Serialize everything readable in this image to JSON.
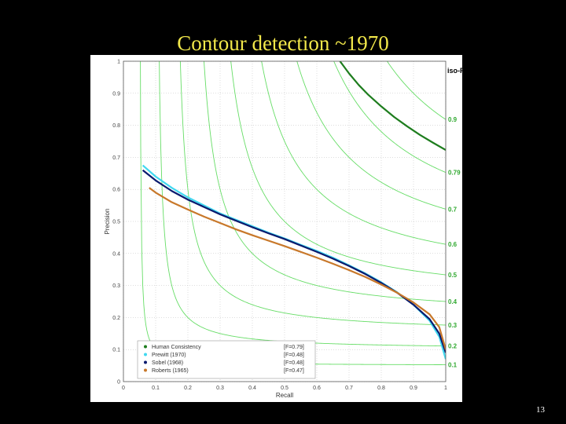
{
  "slide": {
    "title": "Contour detection ~1970",
    "page_number": "13"
  },
  "chart_data": {
    "type": "line",
    "xlabel": "Recall",
    "ylabel": "Precision",
    "xlim": [
      0,
      1
    ],
    "ylim": [
      0,
      1
    ],
    "grid": true,
    "legend_position": "bottom-left",
    "x_ticks": [
      "0",
      "0.1",
      "0.2",
      "0.3",
      "0.4",
      "0.5",
      "0.6",
      "0.7",
      "0.8",
      "0.9",
      "1"
    ],
    "y_ticks": [
      "0",
      "0.1",
      "0.2",
      "0.3",
      "0.4",
      "0.5",
      "0.6",
      "0.7",
      "0.8",
      "0.9",
      "1"
    ],
    "iso_f": {
      "label": "iso-F",
      "values": [
        0.1,
        0.2,
        0.3,
        0.4,
        0.5,
        0.6,
        0.7,
        0.79,
        0.9
      ],
      "labels": [
        "0.1",
        "0.2",
        "0.3",
        "0.4",
        "0.5",
        "0.6",
        "0.7",
        "0.79",
        "0.9"
      ],
      "color": "#66dd66"
    },
    "series": [
      {
        "name": "Human Consistency",
        "score": "[F=0.79]",
        "color": "#1e7d1e",
        "x": [
          0.672,
          0.7,
          0.73,
          0.76,
          0.8,
          0.84,
          0.88,
          0.92,
          0.96,
          1.0
        ],
        "y": [
          1.0,
          0.962,
          0.926,
          0.895,
          0.859,
          0.826,
          0.797,
          0.77,
          0.746,
          0.723
        ]
      },
      {
        "name": "Prewitt (1970)",
        "score": "[F=0.48]",
        "color": "#40d8f0",
        "x": [
          0.06,
          0.1,
          0.15,
          0.2,
          0.25,
          0.3,
          0.35,
          0.4,
          0.45,
          0.5,
          0.55,
          0.6,
          0.65,
          0.7,
          0.75,
          0.8,
          0.85,
          0.9,
          0.95,
          0.98,
          1.0
        ],
        "y": [
          0.675,
          0.64,
          0.605,
          0.575,
          0.55,
          0.525,
          0.505,
          0.485,
          0.465,
          0.447,
          0.427,
          0.408,
          0.387,
          0.363,
          0.338,
          0.31,
          0.278,
          0.24,
          0.19,
          0.14,
          0.07
        ]
      },
      {
        "name": "Sobel (1968)",
        "score": "[F=0.48]",
        "color": "#0a1a6e",
        "x": [
          0.06,
          0.1,
          0.15,
          0.2,
          0.25,
          0.3,
          0.35,
          0.4,
          0.45,
          0.5,
          0.55,
          0.6,
          0.65,
          0.7,
          0.75,
          0.8,
          0.85,
          0.9,
          0.95,
          0.98,
          1.0
        ],
        "y": [
          0.66,
          0.628,
          0.595,
          0.568,
          0.545,
          0.522,
          0.502,
          0.482,
          0.463,
          0.445,
          0.425,
          0.405,
          0.384,
          0.361,
          0.336,
          0.308,
          0.277,
          0.24,
          0.195,
          0.15,
          0.09
        ]
      },
      {
        "name": "Roberts (1965)",
        "score": "[F=0.47]",
        "color": "#c8782a",
        "x": [
          0.08,
          0.1,
          0.15,
          0.2,
          0.25,
          0.3,
          0.35,
          0.4,
          0.45,
          0.5,
          0.55,
          0.6,
          0.65,
          0.7,
          0.75,
          0.8,
          0.85,
          0.9,
          0.95,
          0.98,
          1.0
        ],
        "y": [
          0.605,
          0.59,
          0.56,
          0.537,
          0.515,
          0.495,
          0.475,
          0.457,
          0.44,
          0.423,
          0.405,
          0.387,
          0.368,
          0.348,
          0.327,
          0.303,
          0.277,
          0.247,
          0.21,
          0.17,
          0.1
        ]
      }
    ]
  }
}
